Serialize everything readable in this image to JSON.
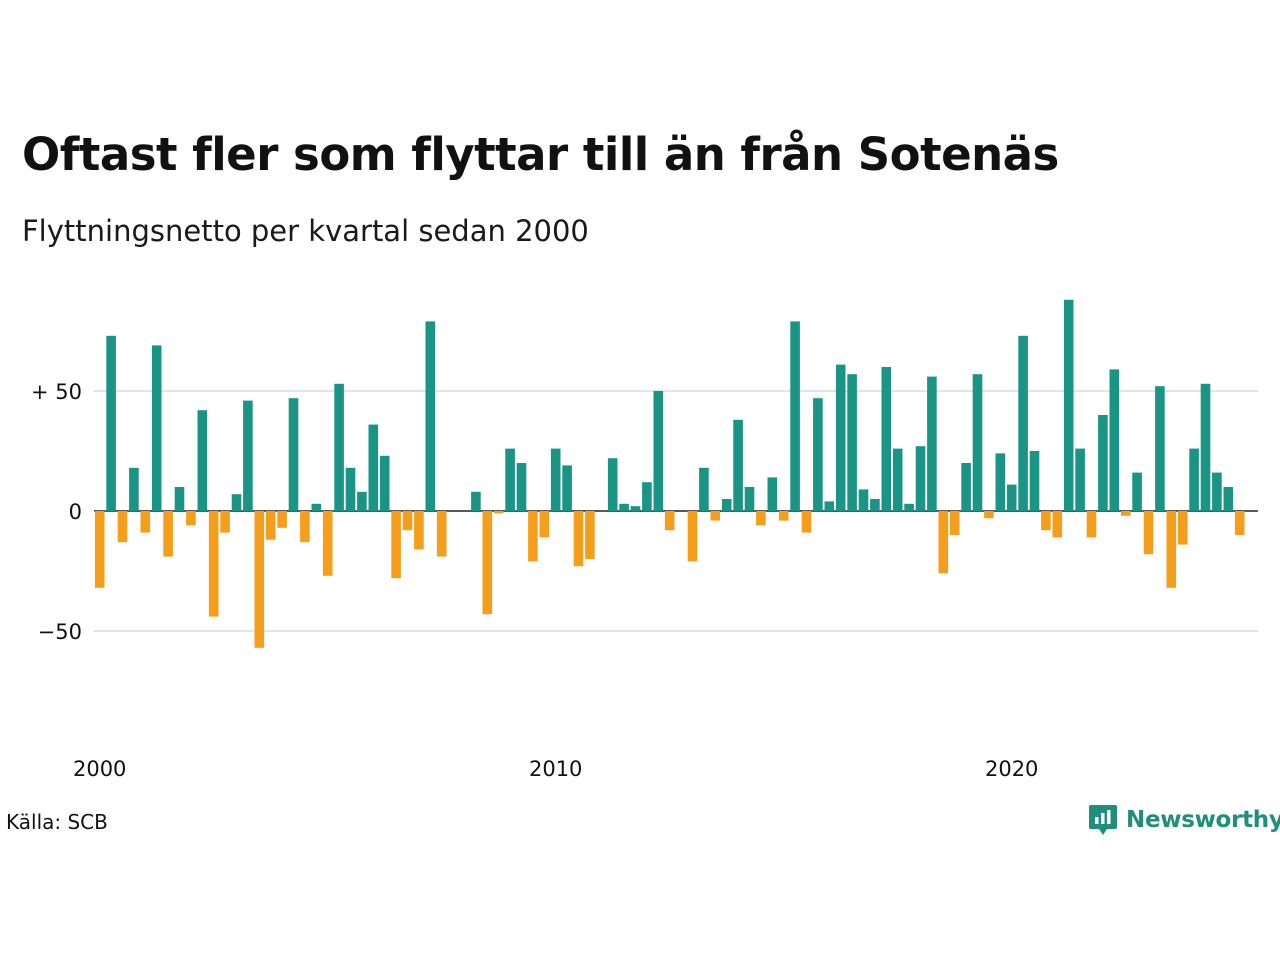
{
  "header": {
    "title": "Oftast fler som flyttar till än från Sotenäs",
    "subtitle": "Flyttningsnetto per kvartal sedan 2000"
  },
  "footer": {
    "source": "Källa: SCB",
    "brand": "Newsworthy"
  },
  "colors": {
    "positive": "#1a9484",
    "negative": "#f59e1b",
    "grid": "#dcdcdc",
    "brand": "#1f8f7c"
  },
  "icons": {
    "brand_logo": "newsworthy-logo-icon"
  },
  "chart_data": {
    "type": "bar",
    "start_year": 2000,
    "periods_per_year": 4,
    "x_ticks": [
      {
        "label": "2000",
        "year": 2000
      },
      {
        "label": "2010",
        "year": 2010
      },
      {
        "label": "2020",
        "year": 2020
      }
    ],
    "y_ticks": [
      {
        "label": "+ 50",
        "value": 50
      },
      {
        "label": "0",
        "value": 0
      },
      {
        "label": "−50",
        "value": -50
      }
    ],
    "ylim": [
      -70,
      90
    ],
    "grid": true,
    "values": [
      -32,
      73,
      -13,
      18,
      -9,
      69,
      -19,
      10,
      -6,
      42,
      -44,
      -9,
      7,
      46,
      -57,
      -12,
      -7,
      47,
      -13,
      3,
      -27,
      53,
      18,
      8,
      36,
      23,
      -28,
      -8,
      -16,
      79,
      -19,
      0,
      0,
      8,
      -43,
      -1,
      26,
      20,
      -21,
      -11,
      26,
      19,
      -23,
      -20,
      0,
      22,
      3,
      2,
      12,
      50,
      -8,
      0,
      -21,
      18,
      -4,
      5,
      38,
      10,
      -6,
      14,
      -4,
      79,
      -9,
      47,
      4,
      61,
      57,
      9,
      5,
      60,
      26,
      3,
      27,
      56,
      -26,
      -10,
      20,
      57,
      -3,
      24,
      11,
      73,
      25,
      -8,
      -11,
      88,
      26,
      -11,
      40,
      59,
      -2,
      16,
      -18,
      52,
      -32,
      -14,
      26,
      53,
      16,
      10,
      -10
    ]
  }
}
